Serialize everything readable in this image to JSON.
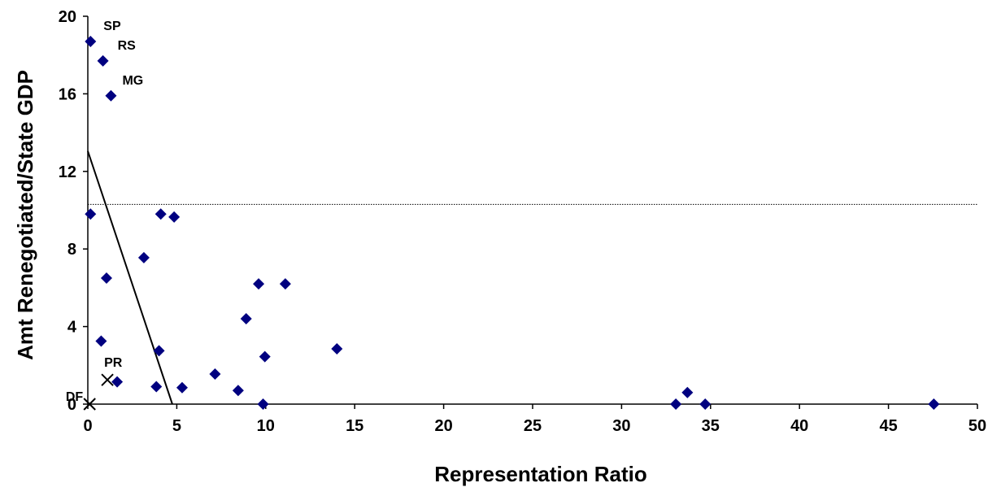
{
  "chart_data": {
    "type": "scatter",
    "title": "",
    "xlabel": "Representation Ratio",
    "ylabel": "Amt Renegotiated/State GDP",
    "xlim": [
      0,
      50
    ],
    "ylim": [
      0,
      20
    ],
    "xticks": [
      0,
      5,
      10,
      15,
      20,
      25,
      30,
      35,
      40,
      45,
      50
    ],
    "yticks": [
      0,
      4,
      8,
      12,
      16,
      20
    ],
    "grid": false,
    "colors": {
      "diamond": "#000080",
      "cross": "#000000",
      "fit": "#000000",
      "reference": "#000000"
    },
    "series": [
      {
        "marker": "diamond",
        "points": [
          {
            "x": 0.15,
            "y": 18.7,
            "label": "SP"
          },
          {
            "x": 0.85,
            "y": 17.7,
            "label": "RS"
          },
          {
            "x": 1.3,
            "y": 15.9,
            "label": "MG"
          },
          {
            "x": 0.15,
            "y": 9.8
          },
          {
            "x": 4.1,
            "y": 9.8
          },
          {
            "x": 4.85,
            "y": 9.65
          },
          {
            "x": 3.15,
            "y": 7.55
          },
          {
            "x": 1.05,
            "y": 6.5
          },
          {
            "x": 9.6,
            "y": 6.2
          },
          {
            "x": 11.1,
            "y": 6.2
          },
          {
            "x": 8.9,
            "y": 4.4
          },
          {
            "x": 0.75,
            "y": 3.25
          },
          {
            "x": 4.0,
            "y": 2.75
          },
          {
            "x": 14.0,
            "y": 2.85
          },
          {
            "x": 9.95,
            "y": 2.45
          },
          {
            "x": 7.15,
            "y": 1.55
          },
          {
            "x": 1.65,
            "y": 1.15
          },
          {
            "x": 3.85,
            "y": 0.9
          },
          {
            "x": 5.3,
            "y": 0.85
          },
          {
            "x": 8.45,
            "y": 0.7
          },
          {
            "x": 9.85,
            "y": 0.0
          },
          {
            "x": 33.05,
            "y": 0.0
          },
          {
            "x": 33.7,
            "y": 0.6
          },
          {
            "x": 34.7,
            "y": 0.0
          },
          {
            "x": 47.55,
            "y": 0.0
          }
        ]
      },
      {
        "marker": "cross",
        "points": [
          {
            "x": 0.1,
            "y": 0.0,
            "label": "DF"
          },
          {
            "x": 1.1,
            "y": 1.25,
            "label": "PR"
          }
        ]
      }
    ],
    "fit_line": {
      "x": [
        0.0,
        4.75
      ],
      "y": [
        13.05,
        0.0
      ]
    },
    "reference_line": {
      "y": 10.3
    }
  }
}
